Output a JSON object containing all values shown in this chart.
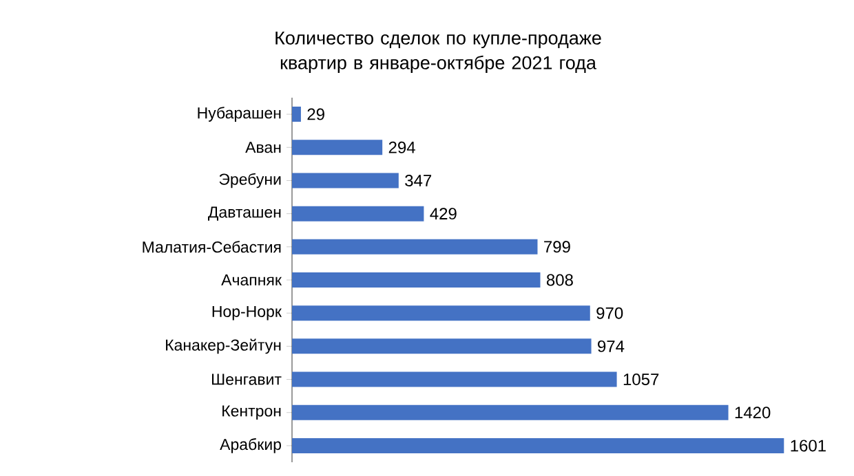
{
  "chart_data": {
    "type": "bar",
    "orientation": "horizontal",
    "title": "Количество сделок по купле-продаже квартир в январе-октябре 2021 года",
    "categories": [
      "Нубарашен",
      "Аван",
      "Эребуни",
      "Давташен",
      "Малатия-Себастия",
      "Ачапняк",
      "Нор-Норк",
      "Канакер-Зейтун",
      "Шенгавит",
      "Кентрон",
      "Арабкир"
    ],
    "values": [
      29,
      294,
      347,
      429,
      799,
      808,
      970,
      974,
      1057,
      1420,
      1601
    ],
    "color": "#4472c4",
    "data_labels": true
  }
}
